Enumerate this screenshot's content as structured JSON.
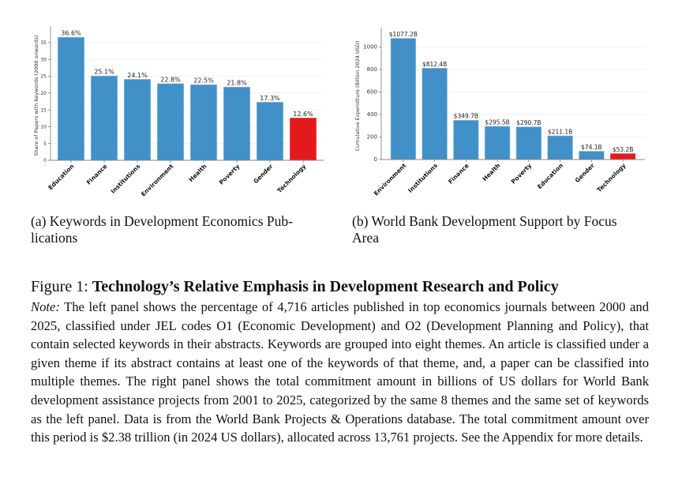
{
  "chart_data": [
    {
      "type": "bar",
      "title": "",
      "xlabel": "",
      "ylabel": "Share of Papers with Keywords (2000 onwards)",
      "categories": [
        "Education",
        "Finance",
        "Institutions",
        "Environment",
        "Health",
        "Poverty",
        "Gender",
        "Technology"
      ],
      "values": [
        36.6,
        25.1,
        24.1,
        22.8,
        22.5,
        21.8,
        17.3,
        12.6
      ],
      "data_labels": [
        "36.6%",
        "25.1%",
        "24.1%",
        "22.8%",
        "22.5%",
        "21.8%",
        "17.3%",
        "12.6%"
      ],
      "colors": [
        "#4190c7",
        "#4190c7",
        "#4190c7",
        "#4190c7",
        "#4190c7",
        "#4190c7",
        "#4190c7",
        "#e31a1c"
      ],
      "ylim": [
        0,
        38.5
      ],
      "yticks": [
        0,
        5,
        10,
        15,
        20,
        25,
        30,
        35
      ],
      "grid": true
    },
    {
      "type": "bar",
      "title": "",
      "xlabel": "",
      "ylabel": "Cumulative Expenditure (Billion 2024 USD)",
      "categories": [
        "Environment",
        "Institutions",
        "Finance",
        "Health",
        "Poverty",
        "Education",
        "Gender",
        "Technology"
      ],
      "values": [
        1077.2,
        812.4,
        349.7,
        295.5,
        290.7,
        211.1,
        74.1,
        53.2
      ],
      "data_labels": [
        "$1077.2B",
        "$812.4B",
        "$349.7B",
        "$295.5B",
        "$290.7B",
        "$211.1B",
        "$74.1B",
        "$53.2B"
      ],
      "colors": [
        "#4190c7",
        "#4190c7",
        "#4190c7",
        "#4190c7",
        "#4190c7",
        "#4190c7",
        "#4190c7",
        "#e31a1c"
      ],
      "ylim": [
        0,
        1130
      ],
      "yticks": [
        0,
        200,
        400,
        600,
        800,
        1000
      ],
      "grid": true
    }
  ],
  "captions": {
    "sub_a": "(a) Keywords in Development Economics Publications",
    "sub_a_line1": "(a) Keywords in Development Economics Pub-",
    "sub_a_line2": "lications",
    "sub_b_line1": "(b) World Bank Development Support by Focus",
    "sub_b_line2": "Area",
    "figure_label": "Figure 1: ",
    "figure_title": "Technology’s Relative Emphasis in Development Research and Policy",
    "note_label": "Note:",
    "note_text": " The left panel shows the percentage of 4,716 articles published in top economics journals between 2000 and 2025, classified under JEL codes O1 (Economic Development) and O2 (Development Planning and Policy), that contain selected keywords in their abstracts.  Keywords are grouped into eight themes.  An article is classified under a given theme if its abstract contains at least one of the keywords of that theme, and, a paper can be classified into multiple themes.  The right panel shows the total commitment amount in billions of US dollars for World Bank development assistance projects from 2001 to 2025, categorized by the same 8 themes and the same set of keywords as the left panel.  Data is from the World Bank Projects & Operations database.  The total commitment amount over this period is $2.38 trillion (in 2024 US dollars), allocated across 13,761 projects. See the Appendix for more details."
  }
}
